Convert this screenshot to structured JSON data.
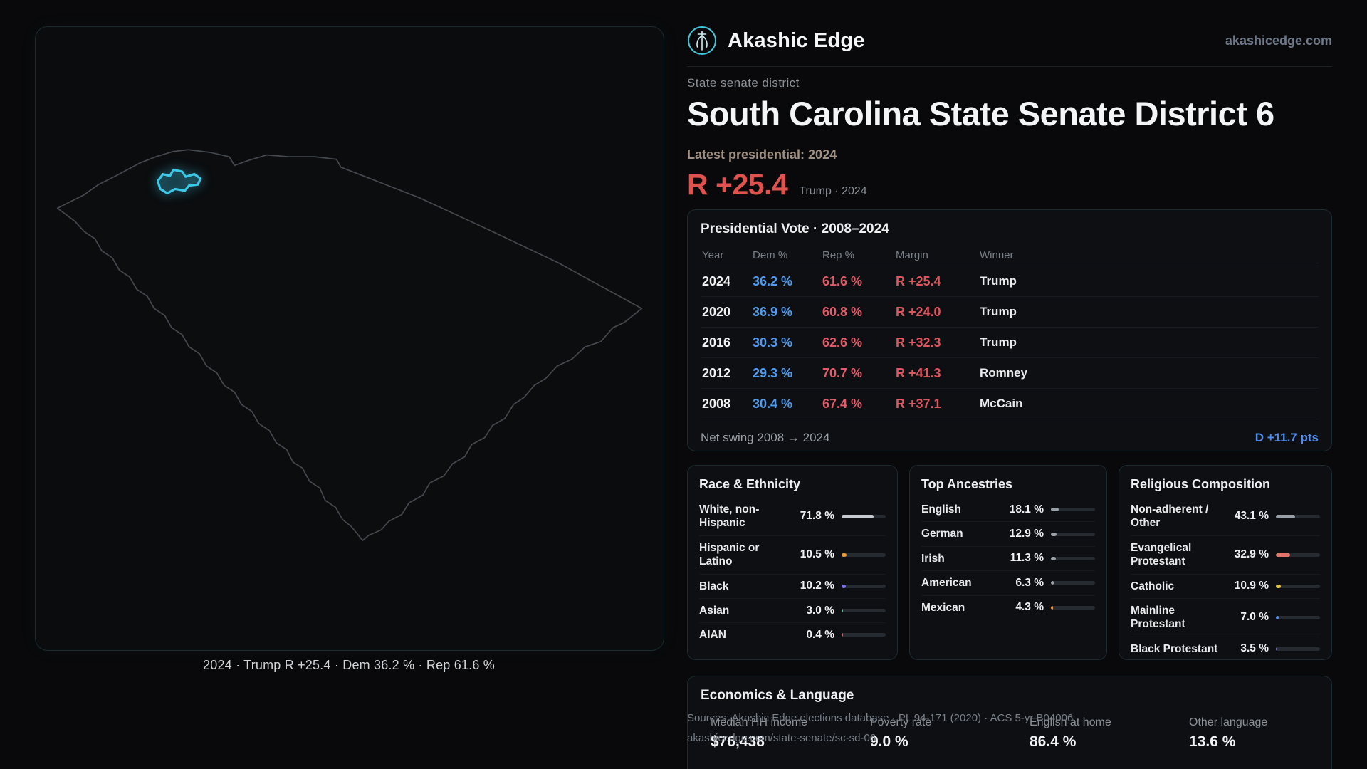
{
  "brand": {
    "name": "Akashic Edge",
    "domain": "akashicedge.com"
  },
  "header": {
    "kicker": "State senate district",
    "title": "South Carolina State Senate District 6",
    "latest_label": "Latest presidential: 2024",
    "margin": "R +25.4",
    "margin_context": "Trump · 2024"
  },
  "map": {
    "caption": "2024 · Trump R +25.4 · Dem 36.2 % · Rep 61.6 %",
    "district_color": "#3cc9e8"
  },
  "presidential": {
    "title": "Presidential Vote · 2008–2024",
    "columns": [
      "Year",
      "Dem %",
      "Rep %",
      "Margin",
      "Winner"
    ],
    "rows": [
      {
        "year": "2024",
        "dem": "36.2 %",
        "rep": "61.6 %",
        "margin": "R +25.4",
        "winner": "Trump"
      },
      {
        "year": "2020",
        "dem": "36.9 %",
        "rep": "60.8 %",
        "margin": "R +24.0",
        "winner": "Trump"
      },
      {
        "year": "2016",
        "dem": "30.3 %",
        "rep": "62.6 %",
        "margin": "R +32.3",
        "winner": "Trump"
      },
      {
        "year": "2012",
        "dem": "29.3 %",
        "rep": "70.7 %",
        "margin": "R +41.3",
        "winner": "Romney"
      },
      {
        "year": "2008",
        "dem": "30.4 %",
        "rep": "67.4 %",
        "margin": "R +37.1",
        "winner": "McCain"
      }
    ],
    "net_swing_label": "Net swing 2008 → 2024",
    "net_swing_value": "D +11.7 pts"
  },
  "race": {
    "title": "Race & Ethnicity",
    "items": [
      {
        "label": "White, non-Hispanic",
        "value": "71.8 %",
        "pct": 71.8,
        "color": "#c7cbd1"
      },
      {
        "label": "Hispanic or Latino",
        "value": "10.5 %",
        "pct": 10.5,
        "color": "#e8963f"
      },
      {
        "label": "Black",
        "value": "10.2 %",
        "pct": 10.2,
        "color": "#7d74f2"
      },
      {
        "label": "Asian",
        "value": "3.0 %",
        "pct": 3.0,
        "color": "#41c08a"
      },
      {
        "label": "AIAN",
        "value": "0.4 %",
        "pct": 0.4,
        "color": "#e0565e"
      }
    ]
  },
  "ancestries": {
    "title": "Top Ancestries",
    "items": [
      {
        "label": "English",
        "value": "18.1 %",
        "pct": 18.1,
        "color": "#9aa0a8"
      },
      {
        "label": "German",
        "value": "12.9 %",
        "pct": 12.9,
        "color": "#9aa0a8"
      },
      {
        "label": "Irish",
        "value": "11.3 %",
        "pct": 11.3,
        "color": "#9aa0a8"
      },
      {
        "label": "American",
        "value": "6.3 %",
        "pct": 6.3,
        "color": "#9aa0a8"
      },
      {
        "label": "Mexican",
        "value": "4.3 %",
        "pct": 4.3,
        "color": "#e8963f"
      }
    ]
  },
  "religion": {
    "title": "Religious Composition",
    "items": [
      {
        "label": "Non-adherent / Other",
        "value": "43.1 %",
        "pct": 43.1,
        "color": "#9aa0a8"
      },
      {
        "label": "Evangelical Protestant",
        "value": "32.9 %",
        "pct": 32.9,
        "color": "#e0766a"
      },
      {
        "label": "Catholic",
        "value": "10.9 %",
        "pct": 10.9,
        "color": "#e3c44d"
      },
      {
        "label": "Mainline Protestant",
        "value": "7.0 %",
        "pct": 7.0,
        "color": "#4d8df0"
      },
      {
        "label": "Black Protestant",
        "value": "3.5 %",
        "pct": 3.5,
        "color": "#8a7ff0"
      }
    ]
  },
  "economics": {
    "title": "Economics & Language",
    "stats": [
      {
        "label": "Median HH income",
        "value": "$76,438"
      },
      {
        "label": "Poverty rate",
        "value": "9.0 %"
      },
      {
        "label": "English at home",
        "value": "86.4 %"
      },
      {
        "label": "Other language",
        "value": "13.6 %"
      }
    ]
  },
  "sources": {
    "line1": "Sources: Akashic Edge elections database · PL 94-171 (2020) · ACS 5-yr B04006",
    "line2": "akashicedge.com/state-senate/sc-sd-06"
  },
  "chart_data": [
    {
      "type": "table",
      "title": "Presidential Vote · 2008–2024",
      "columns": [
        "Year",
        "Dem %",
        "Rep %",
        "Margin",
        "Winner"
      ],
      "rows": [
        [
          2024,
          36.2,
          61.6,
          "R +25.4",
          "Trump"
        ],
        [
          2020,
          36.9,
          60.8,
          "R +24.0",
          "Trump"
        ],
        [
          2016,
          30.3,
          62.6,
          "R +32.3",
          "Trump"
        ],
        [
          2012,
          29.3,
          70.7,
          "R +41.3",
          "Romney"
        ],
        [
          2008,
          30.4,
          67.4,
          "R +37.1",
          "McCain"
        ]
      ],
      "footer": "Net swing 2008 → 2024: D +11.7 pts"
    },
    {
      "type": "bar",
      "title": "Race & Ethnicity",
      "categories": [
        "White, non-Hispanic",
        "Hispanic or Latino",
        "Black",
        "Asian",
        "AIAN"
      ],
      "values": [
        71.8,
        10.5,
        10.2,
        3.0,
        0.4
      ],
      "unit": "%",
      "xlim": [
        0,
        100
      ]
    },
    {
      "type": "bar",
      "title": "Top Ancestries",
      "categories": [
        "English",
        "German",
        "Irish",
        "American",
        "Mexican"
      ],
      "values": [
        18.1,
        12.9,
        11.3,
        6.3,
        4.3
      ],
      "unit": "%",
      "xlim": [
        0,
        100
      ]
    },
    {
      "type": "bar",
      "title": "Religious Composition",
      "categories": [
        "Non-adherent / Other",
        "Evangelical Protestant",
        "Catholic",
        "Mainline Protestant",
        "Black Protestant"
      ],
      "values": [
        43.1,
        32.9,
        10.9,
        7.0,
        3.5
      ],
      "unit": "%",
      "xlim": [
        0,
        100
      ]
    }
  ]
}
